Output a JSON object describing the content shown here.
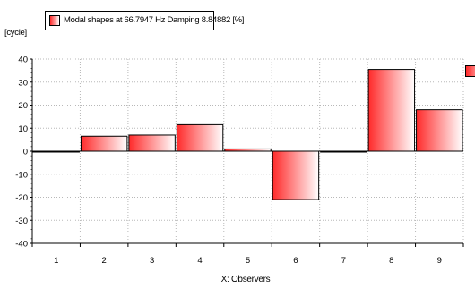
{
  "chart_data": {
    "type": "bar",
    "legend": "Modal shapes at 66.7947 Hz Damping 8.84882 [%]",
    "ylabel": "[cycle]",
    "xlabel": "X: Observers",
    "categories": [
      "1",
      "2",
      "3",
      "4",
      "5",
      "6",
      "7",
      "8",
      "9"
    ],
    "values": [
      0,
      6.5,
      7,
      11.5,
      1,
      -21,
      0,
      35.5,
      18
    ],
    "ylim": [
      -40,
      40
    ],
    "yticks": [
      -40,
      -30,
      -20,
      -10,
      0,
      10,
      20,
      30,
      40
    ],
    "grid": true,
    "legend_position": "top-left",
    "colors": {
      "bar": "#ff2a2a",
      "bar_light": "#ffffff",
      "zero_line": "#000000"
    }
  }
}
